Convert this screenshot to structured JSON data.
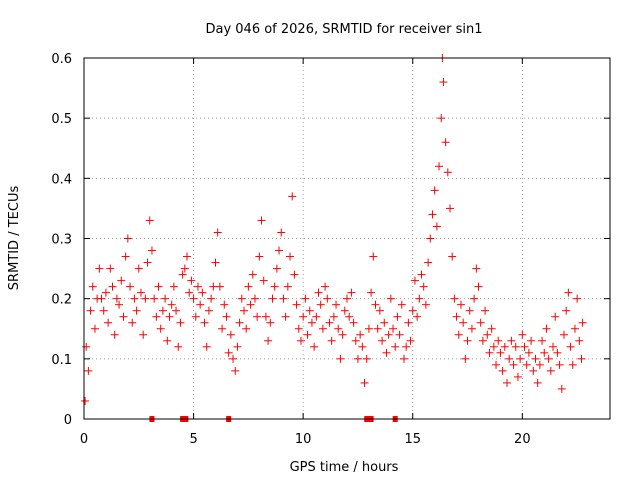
{
  "chart_data": {
    "type": "scatter",
    "title": "Day 046 of 2026, SRMTID for receiver sin1",
    "xlabel": "GPS time / hours",
    "ylabel": "SRMTID / TECUs",
    "xlim": [
      0,
      24
    ],
    "ylim": [
      0,
      0.6
    ],
    "x_ticks": [
      0,
      5,
      10,
      15,
      20
    ],
    "x_tick_labels": [
      "0",
      "5",
      "10",
      "15",
      "20"
    ],
    "y_ticks": [
      0,
      0.1,
      0.2,
      0.3,
      0.4,
      0.5,
      0.6
    ],
    "y_tick_labels": [
      "0",
      "0.1",
      "0.2",
      "0.3",
      "0.4",
      "0.5",
      "0.6"
    ],
    "grid": true,
    "marker": "plus",
    "color": "#ff0000",
    "series": [
      {
        "name": "SRMTID sin1",
        "points": [
          [
            0.05,
            0.03
          ],
          [
            0.1,
            0.12
          ],
          [
            0.2,
            0.08
          ],
          [
            0.3,
            0.18
          ],
          [
            0.4,
            0.22
          ],
          [
            0.5,
            0.15
          ],
          [
            0.6,
            0.2
          ],
          [
            0.7,
            0.25
          ],
          [
            0.8,
            0.2
          ],
          [
            0.9,
            0.18
          ],
          [
            1.0,
            0.21
          ],
          [
            1.1,
            0.16
          ],
          [
            1.2,
            0.25
          ],
          [
            1.3,
            0.22
          ],
          [
            1.4,
            0.14
          ],
          [
            1.5,
            0.2
          ],
          [
            1.6,
            0.19
          ],
          [
            1.7,
            0.23
          ],
          [
            1.8,
            0.17
          ],
          [
            1.9,
            0.27
          ],
          [
            2.0,
            0.3
          ],
          [
            2.1,
            0.22
          ],
          [
            2.2,
            0.16
          ],
          [
            2.3,
            0.2
          ],
          [
            2.4,
            0.18
          ],
          [
            2.5,
            0.25
          ],
          [
            2.6,
            0.21
          ],
          [
            2.7,
            0.14
          ],
          [
            2.8,
            0.2
          ],
          [
            2.9,
            0.26
          ],
          [
            3.0,
            0.33
          ],
          [
            3.1,
            0.28
          ],
          [
            3.2,
            0.2
          ],
          [
            3.3,
            0.17
          ],
          [
            3.4,
            0.22
          ],
          [
            3.5,
            0.15
          ],
          [
            3.6,
            0.18
          ],
          [
            3.7,
            0.2
          ],
          [
            3.8,
            0.13
          ],
          [
            3.9,
            0.17
          ],
          [
            4.0,
            0.19
          ],
          [
            4.1,
            0.22
          ],
          [
            4.2,
            0.18
          ],
          [
            4.3,
            0.12
          ],
          [
            4.4,
            0.16
          ],
          [
            4.5,
            0.24
          ],
          [
            4.6,
            0.25
          ],
          [
            4.7,
            0.27
          ],
          [
            4.8,
            0.21
          ],
          [
            4.9,
            0.23
          ],
          [
            5.0,
            0.2
          ],
          [
            5.1,
            0.17
          ],
          [
            5.2,
            0.22
          ],
          [
            5.3,
            0.19
          ],
          [
            5.4,
            0.21
          ],
          [
            5.5,
            0.16
          ],
          [
            5.6,
            0.12
          ],
          [
            5.7,
            0.18
          ],
          [
            5.8,
            0.2
          ],
          [
            5.9,
            0.22
          ],
          [
            6.0,
            0.26
          ],
          [
            6.1,
            0.31
          ],
          [
            6.2,
            0.22
          ],
          [
            6.3,
            0.15
          ],
          [
            6.4,
            0.19
          ],
          [
            6.5,
            0.17
          ],
          [
            6.6,
            0.11
          ],
          [
            6.7,
            0.14
          ],
          [
            6.8,
            0.1
          ],
          [
            6.9,
            0.08
          ],
          [
            7.0,
            0.12
          ],
          [
            7.1,
            0.16
          ],
          [
            7.2,
            0.2
          ],
          [
            7.3,
            0.18
          ],
          [
            7.4,
            0.15
          ],
          [
            7.5,
            0.22
          ],
          [
            7.6,
            0.19
          ],
          [
            7.7,
            0.24
          ],
          [
            7.8,
            0.2
          ],
          [
            7.9,
            0.17
          ],
          [
            8.0,
            0.27
          ],
          [
            8.1,
            0.33
          ],
          [
            8.2,
            0.23
          ],
          [
            8.3,
            0.17
          ],
          [
            8.4,
            0.13
          ],
          [
            8.5,
            0.16
          ],
          [
            8.6,
            0.2
          ],
          [
            8.7,
            0.22
          ],
          [
            8.8,
            0.25
          ],
          [
            8.9,
            0.28
          ],
          [
            9.0,
            0.31
          ],
          [
            9.1,
            0.2
          ],
          [
            9.2,
            0.17
          ],
          [
            9.3,
            0.22
          ],
          [
            9.4,
            0.27
          ],
          [
            9.5,
            0.37
          ],
          [
            9.6,
            0.24
          ],
          [
            9.7,
            0.19
          ],
          [
            9.8,
            0.15
          ],
          [
            9.9,
            0.13
          ],
          [
            10.0,
            0.17
          ],
          [
            10.1,
            0.2
          ],
          [
            10.2,
            0.14
          ],
          [
            10.3,
            0.18
          ],
          [
            10.4,
            0.16
          ],
          [
            10.5,
            0.12
          ],
          [
            10.6,
            0.17
          ],
          [
            10.7,
            0.21
          ],
          [
            10.8,
            0.19
          ],
          [
            10.9,
            0.15
          ],
          [
            11.0,
            0.22
          ],
          [
            11.1,
            0.2
          ],
          [
            11.2,
            0.16
          ],
          [
            11.3,
            0.13
          ],
          [
            11.4,
            0.17
          ],
          [
            11.5,
            0.19
          ],
          [
            11.6,
            0.15
          ],
          [
            11.7,
            0.1
          ],
          [
            11.8,
            0.14
          ],
          [
            11.9,
            0.18
          ],
          [
            12.0,
            0.2
          ],
          [
            12.1,
            0.17
          ],
          [
            12.2,
            0.21
          ],
          [
            12.3,
            0.16
          ],
          [
            12.4,
            0.13
          ],
          [
            12.5,
            0.1
          ],
          [
            12.6,
            0.14
          ],
          [
            12.7,
            0.12
          ],
          [
            12.8,
            0.06
          ],
          [
            12.9,
            0.1
          ],
          [
            13.0,
            0.15
          ],
          [
            13.1,
            0.21
          ],
          [
            13.2,
            0.27
          ],
          [
            13.3,
            0.19
          ],
          [
            13.4,
            0.15
          ],
          [
            13.5,
            0.18
          ],
          [
            13.6,
            0.13
          ],
          [
            13.7,
            0.16
          ],
          [
            13.8,
            0.11
          ],
          [
            13.9,
            0.14
          ],
          [
            14.0,
            0.2
          ],
          [
            14.1,
            0.15
          ],
          [
            14.2,
            0.12
          ],
          [
            14.3,
            0.17
          ],
          [
            14.4,
            0.14
          ],
          [
            14.5,
            0.19
          ],
          [
            14.6,
            0.1
          ],
          [
            14.7,
            0.12
          ],
          [
            14.8,
            0.16
          ],
          [
            14.9,
            0.13
          ],
          [
            15.0,
            0.18
          ],
          [
            15.1,
            0.23
          ],
          [
            15.2,
            0.17
          ],
          [
            15.3,
            0.2
          ],
          [
            15.4,
            0.24
          ],
          [
            15.5,
            0.22
          ],
          [
            15.6,
            0.19
          ],
          [
            15.7,
            0.26
          ],
          [
            15.8,
            0.3
          ],
          [
            15.9,
            0.34
          ],
          [
            16.0,
            0.38
          ],
          [
            16.1,
            0.32
          ],
          [
            16.2,
            0.42
          ],
          [
            16.3,
            0.5
          ],
          [
            16.35,
            0.6
          ],
          [
            16.4,
            0.56
          ],
          [
            16.5,
            0.46
          ],
          [
            16.6,
            0.41
          ],
          [
            16.7,
            0.35
          ],
          [
            16.8,
            0.27
          ],
          [
            16.9,
            0.2
          ],
          [
            17.0,
            0.17
          ],
          [
            17.1,
            0.14
          ],
          [
            17.2,
            0.19
          ],
          [
            17.3,
            0.16
          ],
          [
            17.4,
            0.1
          ],
          [
            17.5,
            0.13
          ],
          [
            17.6,
            0.18
          ],
          [
            17.7,
            0.15
          ],
          [
            17.8,
            0.2
          ],
          [
            17.9,
            0.25
          ],
          [
            18.0,
            0.22
          ],
          [
            18.1,
            0.16
          ],
          [
            18.2,
            0.13
          ],
          [
            18.3,
            0.18
          ],
          [
            18.4,
            0.14
          ],
          [
            18.5,
            0.11
          ],
          [
            18.6,
            0.15
          ],
          [
            18.7,
            0.12
          ],
          [
            18.8,
            0.09
          ],
          [
            18.9,
            0.13
          ],
          [
            19.0,
            0.11
          ],
          [
            19.1,
            0.08
          ],
          [
            19.2,
            0.12
          ],
          [
            19.3,
            0.06
          ],
          [
            19.4,
            0.1
          ],
          [
            19.5,
            0.13
          ],
          [
            19.6,
            0.09
          ],
          [
            19.7,
            0.12
          ],
          [
            19.8,
            0.07
          ],
          [
            19.9,
            0.1
          ],
          [
            20.0,
            0.14
          ],
          [
            20.1,
            0.12
          ],
          [
            20.2,
            0.09
          ],
          [
            20.3,
            0.11
          ],
          [
            20.4,
            0.13
          ],
          [
            20.5,
            0.08
          ],
          [
            20.6,
            0.1
          ],
          [
            20.7,
            0.06
          ],
          [
            20.8,
            0.09
          ],
          [
            20.9,
            0.13
          ],
          [
            21.0,
            0.11
          ],
          [
            21.1,
            0.15
          ],
          [
            21.2,
            0.1
          ],
          [
            21.3,
            0.08
          ],
          [
            21.4,
            0.12
          ],
          [
            21.5,
            0.17
          ],
          [
            21.6,
            0.11
          ],
          [
            21.7,
            0.09
          ],
          [
            21.8,
            0.05
          ],
          [
            21.9,
            0.14
          ],
          [
            22.0,
            0.18
          ],
          [
            22.1,
            0.21
          ],
          [
            22.2,
            0.12
          ],
          [
            22.3,
            0.09
          ],
          [
            22.4,
            0.15
          ],
          [
            22.5,
            0.2
          ],
          [
            22.6,
            0.13
          ],
          [
            22.7,
            0.1
          ],
          [
            22.75,
            0.16
          ]
        ]
      }
    ],
    "zero_markers_x": [
      3.1,
      4.5,
      4.65,
      6.6,
      12.9,
      13.1,
      14.2
    ]
  }
}
